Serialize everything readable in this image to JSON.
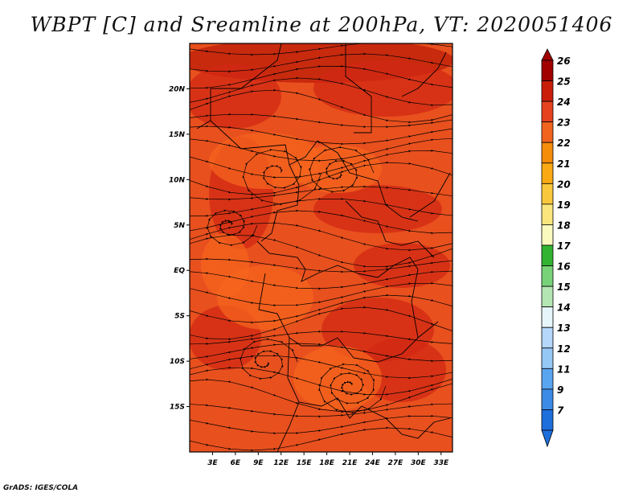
{
  "title": "WBPT [C] and Sreamline at 200hPa, VT: 2020051406",
  "footer": "GrADS: IGES/COLA",
  "map": {
    "lat_labels": [
      "20N",
      "15N",
      "10N",
      "5N",
      "EQ",
      "5S",
      "10S",
      "15S"
    ],
    "lat_values": [
      20,
      15,
      10,
      5,
      0,
      -5,
      -10,
      -15
    ],
    "lon_labels": [
      "3E",
      "6E",
      "9E",
      "12E",
      "15E",
      "18E",
      "21E",
      "24E",
      "27E",
      "30E",
      "33E"
    ],
    "lon_values": [
      3,
      6,
      9,
      12,
      15,
      18,
      21,
      24,
      27,
      30,
      33
    ],
    "lon_range": [
      0,
      34.5
    ],
    "lat_range": [
      -20,
      25
    ],
    "field_colors": {
      "base": "#e8501e",
      "warm": "#d22814",
      "hot": "#be1e0a",
      "cool": "#f5641e"
    }
  },
  "colorbar": {
    "labels": [
      "26",
      "25",
      "24",
      "23",
      "22",
      "21",
      "20",
      "19",
      "18",
      "17",
      "16",
      "15",
      "14",
      "13",
      "12",
      "11",
      "9",
      "7"
    ],
    "colors": [
      "#a00000",
      "#c81e0a",
      "#e6411e",
      "#f0641e",
      "#f58c0a",
      "#faaa14",
      "#fac83c",
      "#fae67d",
      "#fafabe",
      "#32b432",
      "#78d278",
      "#b4e6b4",
      "#e6f5fa",
      "#b4d7fa",
      "#96c8f5",
      "#5aa5f0",
      "#3c8ce6",
      "#1e6edc"
    ]
  }
}
